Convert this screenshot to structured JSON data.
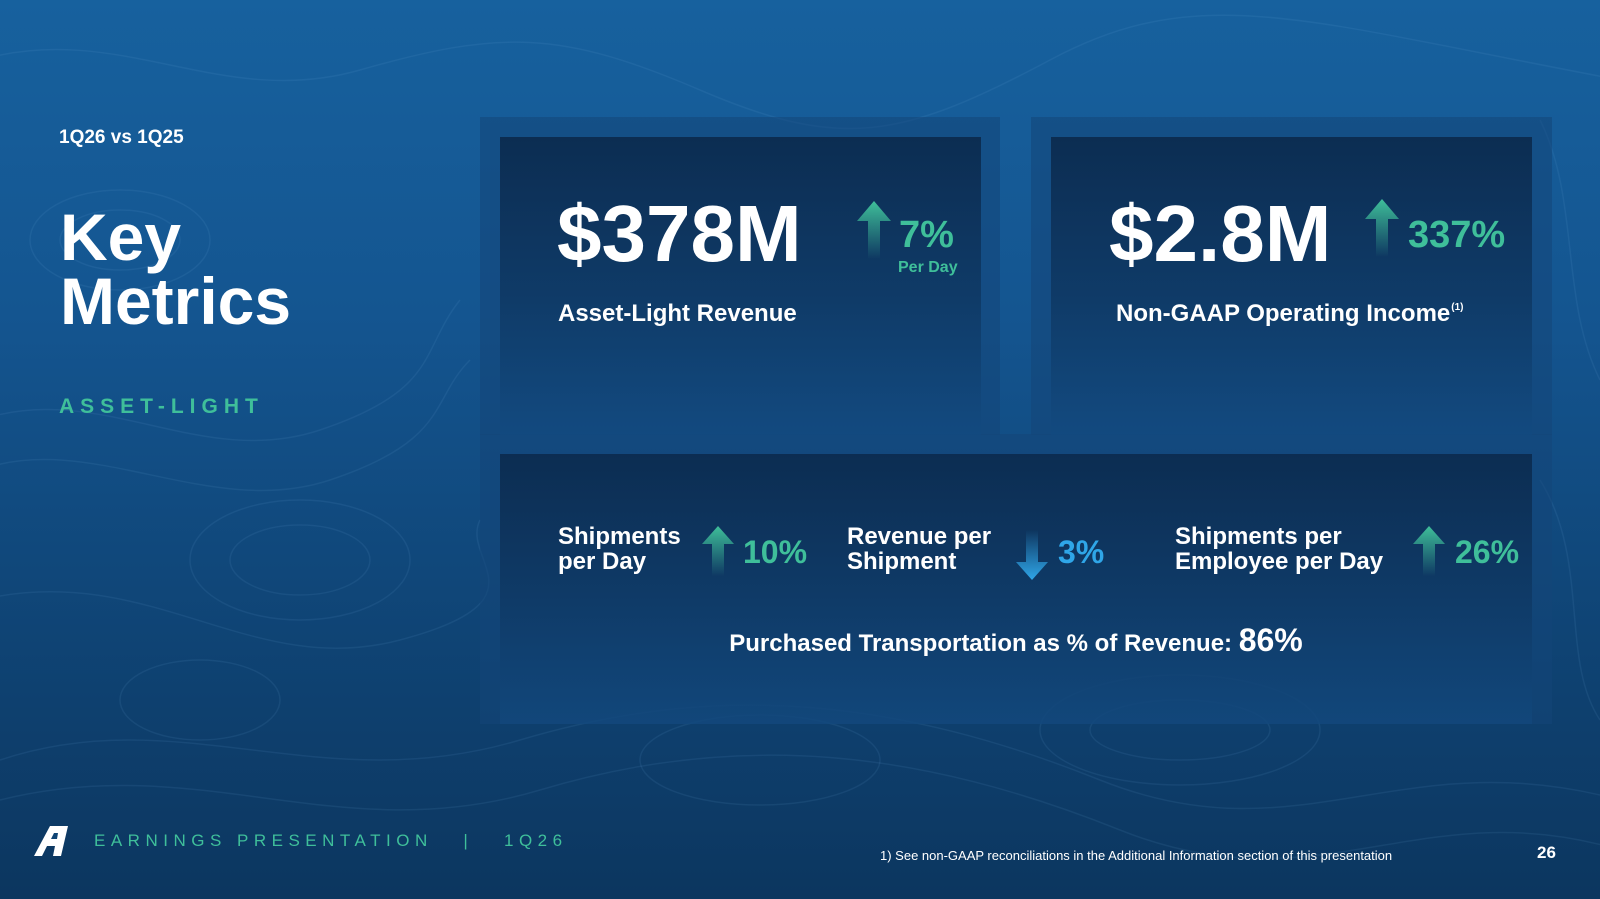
{
  "header": {
    "comparison": "1Q26 vs 1Q25",
    "title_line1": "Key",
    "title_line2": "Metrics",
    "segment": "ASSET-LIGHT"
  },
  "cards": {
    "revenue": {
      "value": "$378M",
      "change": "7%",
      "change_note": "Per Day",
      "direction": "up",
      "label": "Asset-Light Revenue"
    },
    "operating_income": {
      "value": "$2.8M",
      "change": "337%",
      "direction": "up",
      "label": "Non-GAAP Operating Income",
      "footnote_ref": "(1)"
    }
  },
  "kpis": [
    {
      "label_line1": "Shipments",
      "label_line2": "per Day",
      "change": "10%",
      "direction": "up"
    },
    {
      "label_line1": "Revenue per",
      "label_line2": "Shipment",
      "change": "3%",
      "direction": "down"
    },
    {
      "label_line1": "Shipments per",
      "label_line2": "Employee per Day",
      "change": "26%",
      "direction": "up"
    }
  ],
  "purchased": {
    "label": "Purchased Transportation as % of Revenue:",
    "value": "86%"
  },
  "footer": {
    "presentation": "EARNINGS PRESENTATION   |   1Q26",
    "footnote": "1)  See non-GAAP reconciliations in the Additional Information section of this presentation",
    "page": "26"
  },
  "colors": {
    "accent_green": "#3fbf9a",
    "accent_blue": "#2fa6e8",
    "background": "#145590",
    "panel": "#0c2d52"
  },
  "icons": {
    "up": "up-arrow-icon",
    "down": "down-arrow-icon",
    "logo": "company-logo-icon"
  }
}
